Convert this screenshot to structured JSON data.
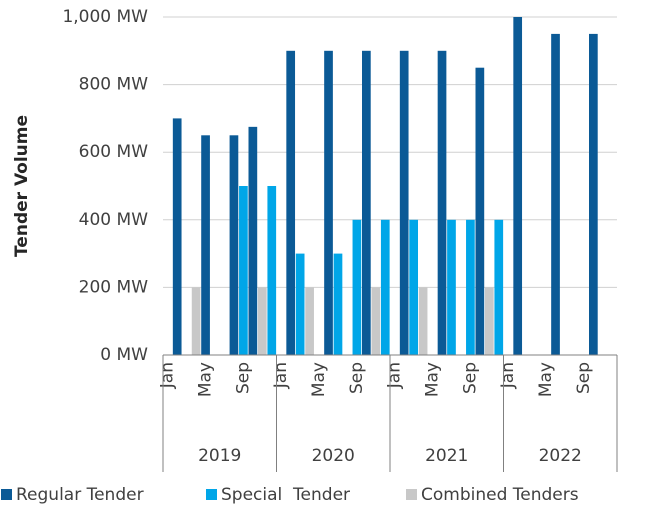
{
  "chart_data": {
    "type": "bar",
    "y_label": "Tender Volume",
    "categories": [
      "Jan",
      null,
      null,
      null,
      "May",
      null,
      null,
      null,
      "Sep",
      null,
      null,
      null,
      "Jan",
      null,
      null,
      null,
      "May",
      null,
      null,
      null,
      "Sep",
      null,
      null,
      null,
      "Jan",
      null,
      null,
      null,
      "May",
      null,
      null,
      null,
      "Sep",
      null,
      null,
      null,
      "Jan",
      null,
      null,
      null,
      "May",
      null,
      null,
      null,
      "Sep",
      null,
      null,
      null
    ],
    "groups": [
      "2019",
      "2020",
      "2021",
      "2022"
    ],
    "series": [
      {
        "name": "Regular Tender",
        "color": "#0b5a96",
        "values": [
          null,
          700,
          null,
          null,
          650,
          null,
          null,
          650,
          null,
          675,
          null,
          null,
          null,
          900,
          null,
          null,
          null,
          900,
          null,
          null,
          null,
          900,
          null,
          null,
          null,
          900,
          null,
          null,
          null,
          900,
          null,
          null,
          null,
          850,
          null,
          null,
          null,
          1000,
          null,
          null,
          null,
          950,
          null,
          null,
          null,
          950,
          null,
          null
        ]
      },
      {
        "name": "Special  Tender",
        "color": "#00a6e8",
        "values": [
          null,
          null,
          null,
          null,
          null,
          null,
          null,
          null,
          500,
          null,
          null,
          500,
          null,
          null,
          300,
          null,
          null,
          null,
          300,
          null,
          400,
          null,
          null,
          400,
          null,
          null,
          400,
          null,
          null,
          null,
          400,
          null,
          400,
          null,
          null,
          400,
          null,
          null,
          null,
          null,
          null,
          null,
          null,
          null,
          null,
          null,
          null,
          null
        ]
      },
      {
        "name": "Combined Tenders",
        "color": "#c8c8c8",
        "values": [
          null,
          null,
          null,
          200,
          null,
          null,
          null,
          null,
          null,
          null,
          200,
          null,
          null,
          null,
          null,
          200,
          null,
          null,
          null,
          null,
          null,
          null,
          200,
          null,
          null,
          null,
          null,
          200,
          null,
          null,
          null,
          null,
          null,
          null,
          200,
          null,
          null,
          null,
          null,
          null,
          null,
          null,
          null,
          null,
          null,
          null,
          null,
          null
        ]
      }
    ],
    "ylim": [
      0,
      1000
    ],
    "yticks": [
      {
        "value": 0,
        "label": "0 MW"
      },
      {
        "value": 200,
        "label": "200 MW"
      },
      {
        "value": 400,
        "label": "400 MW"
      },
      {
        "value": 600,
        "label": "600 MW"
      },
      {
        "value": 800,
        "label": "800 MW"
      },
      {
        "value": 1000,
        "label": "1,000 MW"
      }
    ],
    "grid": true,
    "legend": "bottom"
  }
}
